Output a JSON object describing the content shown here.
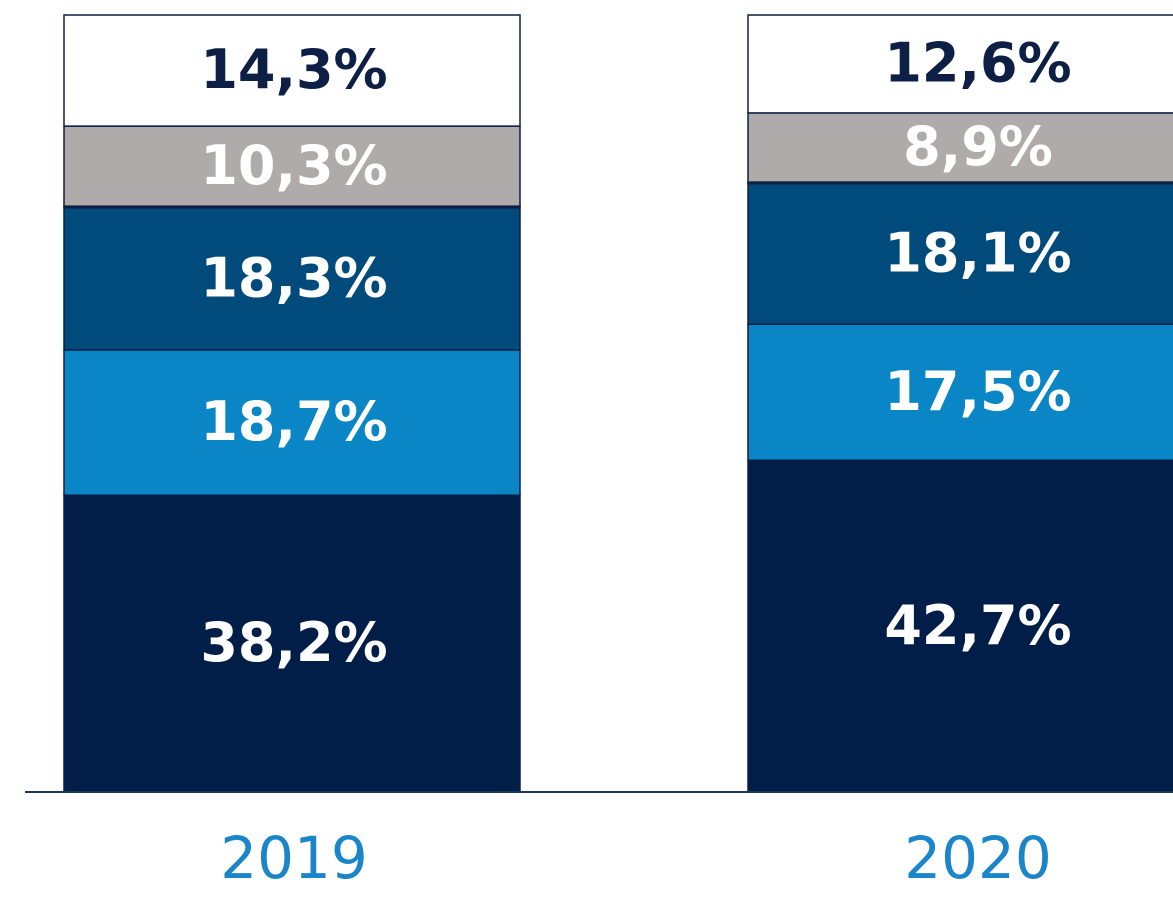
{
  "chart_data": {
    "type": "stacked_bar",
    "categories": [
      "2019",
      "2020"
    ],
    "ylim": [
      0,
      100
    ],
    "series": [
      {
        "color": "#001e48",
        "label_color": "#ffffff",
        "values": [
          38.2,
          42.7
        ],
        "value_labels": [
          "38,2%",
          "42,7%"
        ]
      },
      {
        "color": "#0a85c6",
        "label_color": "#ffffff",
        "values": [
          18.7,
          17.5
        ],
        "value_labels": [
          "18,7%",
          "17,5%"
        ]
      },
      {
        "color": "#004a7c",
        "label_color": "#ffffff",
        "values": [
          18.3,
          18.1
        ],
        "value_labels": [
          "18,3%",
          "18,1%"
        ]
      },
      {
        "color": "#f0a830",
        "label_color": "#ffffff",
        "values": [
          0.2,
          0.2
        ],
        "value_labels": [
          null,
          null
        ]
      },
      {
        "color": "#b0abab",
        "label_color": "#ffffff",
        "values": [
          10.3,
          8.9
        ],
        "value_labels": [
          "10,3%",
          "8,9%"
        ]
      },
      {
        "color": "#ffffff",
        "label_color": "#0d1f45",
        "values": [
          14.3,
          12.6
        ],
        "value_labels": [
          "14,3%",
          "12,6%"
        ]
      }
    ]
  }
}
